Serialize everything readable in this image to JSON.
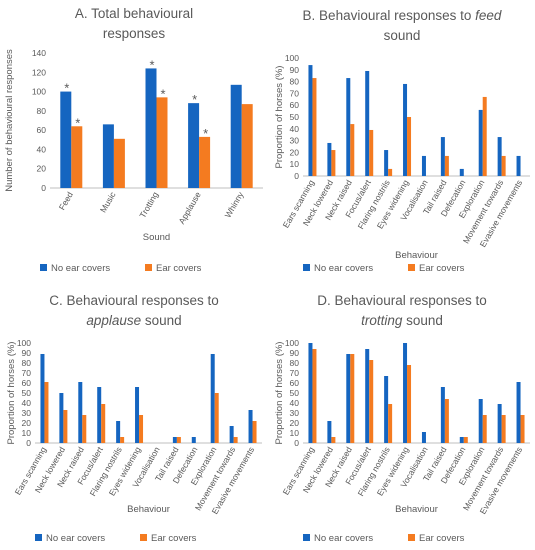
{
  "colors": {
    "no_ear_covers": "#1565C0",
    "ear_covers": "#F47B20",
    "axis": "#BFBFBF",
    "text": "#595959"
  },
  "chart_data": [
    {
      "type": "bar",
      "title": [
        "A. Total behavioural",
        "responses"
      ],
      "xlabel": "Sound",
      "ylabel": "Number of behavioural responses",
      "ylim": [
        0,
        140
      ],
      "yticks": [
        0,
        20,
        40,
        60,
        80,
        100,
        120,
        140
      ],
      "categories": [
        "Feed",
        "Music",
        "Trotting",
        "Applause",
        "Whinny"
      ],
      "series": [
        {
          "name": "No ear covers",
          "values": [
            100,
            66,
            124,
            88,
            107
          ]
        },
        {
          "name": "Ear covers",
          "values": [
            64,
            51,
            94,
            53,
            87
          ]
        }
      ],
      "annotations": [
        {
          "text": "*",
          "category": "Feed",
          "series": "No ear covers"
        },
        {
          "text": "*",
          "category": "Feed",
          "series": "Ear covers"
        },
        {
          "text": "*",
          "category": "Trotting",
          "series": "No ear covers"
        },
        {
          "text": "*",
          "category": "Trotting",
          "series": "Ear covers"
        },
        {
          "text": "*",
          "category": "Applause",
          "series": "No ear covers"
        },
        {
          "text": "*",
          "category": "Applause",
          "series": "Ear covers"
        }
      ],
      "legend": "bottom",
      "grid": false
    },
    {
      "type": "bar",
      "title": [
        [
          {
            "t": "B. Behavioural responses to ",
            "i": false
          },
          {
            "t": "feed",
            "i": true
          }
        ],
        [
          {
            "t": "sound",
            "i": false
          }
        ]
      ],
      "xlabel": "Behaviour",
      "ylabel": "Proportion of horses (%)",
      "ylim": [
        0,
        100
      ],
      "yticks": [
        0,
        10,
        20,
        30,
        40,
        50,
        60,
        70,
        80,
        90,
        100
      ],
      "categories": [
        "Ears scanning",
        "Neck lowered",
        "Neck raised",
        "Focus/alert",
        "Flaring nostrils",
        "Eyes widening",
        "Vocalisation",
        "Tail raised",
        "Defecation",
        "Exploration",
        "Movement towards",
        "Evasive movements"
      ],
      "series": [
        {
          "name": "No ear covers",
          "values": [
            94,
            28,
            83,
            89,
            22,
            78,
            17,
            33,
            6,
            56,
            33,
            17
          ]
        },
        {
          "name": "Ear covers",
          "values": [
            83,
            22,
            44,
            39,
            6,
            50,
            0,
            17,
            0,
            67,
            17,
            0
          ]
        }
      ],
      "legend": "bottom",
      "grid": false
    },
    {
      "type": "bar",
      "title": [
        [
          {
            "t": "C. Behavioural responses to",
            "i": false
          }
        ],
        [
          {
            "t": "applause",
            "i": true
          },
          {
            "t": " sound",
            "i": false
          }
        ]
      ],
      "xlabel": "Behaviour",
      "ylabel": "Proportion of horses (%)",
      "ylim": [
        0,
        100
      ],
      "yticks": [
        0,
        10,
        20,
        30,
        40,
        50,
        60,
        70,
        80,
        90,
        100
      ],
      "categories": [
        "Ears scanning",
        "Neck lowered",
        "Neck raised",
        "Focus/alert",
        "Flaring nostrils",
        "Eyes widening",
        "Vocalisation",
        "Tail raised",
        "Defecation",
        "Exploration",
        "Movement towards",
        "Evasive movements"
      ],
      "series": [
        {
          "name": "No ear covers",
          "values": [
            89,
            50,
            61,
            56,
            22,
            56,
            0,
            6,
            6,
            89,
            17,
            33
          ]
        },
        {
          "name": "Ear covers",
          "values": [
            61,
            33,
            28,
            39,
            6,
            28,
            0,
            6,
            0,
            50,
            6,
            22
          ]
        }
      ],
      "legend": "bottom",
      "grid": false
    },
    {
      "type": "bar",
      "title": [
        [
          {
            "t": "D. Behavioural responses to",
            "i": false
          }
        ],
        [
          {
            "t": "trotting",
            "i": true
          },
          {
            "t": " sound",
            "i": false
          }
        ]
      ],
      "xlabel": "Behaviour",
      "ylabel": "Proportion of horses (%)",
      "ylim": [
        0,
        100
      ],
      "yticks": [
        0,
        10,
        20,
        30,
        40,
        50,
        60,
        70,
        80,
        90,
        100
      ],
      "categories": [
        "Ears scanning",
        "Neck lowered",
        "Neck raised",
        "Focus/alert",
        "Flaring nostrils",
        "Eyes widening",
        "Vocalisation",
        "Tail raised",
        "Defecation",
        "Exploration",
        "Movement towards",
        "Evasive movements"
      ],
      "series": [
        {
          "name": "No ear covers",
          "values": [
            100,
            22,
            89,
            94,
            67,
            100,
            11,
            56,
            6,
            44,
            39,
            61
          ]
        },
        {
          "name": "Ear covers",
          "values": [
            94,
            6,
            89,
            83,
            39,
            78,
            0,
            44,
            6,
            28,
            28,
            28
          ]
        }
      ],
      "legend": "bottom",
      "grid": false
    }
  ]
}
